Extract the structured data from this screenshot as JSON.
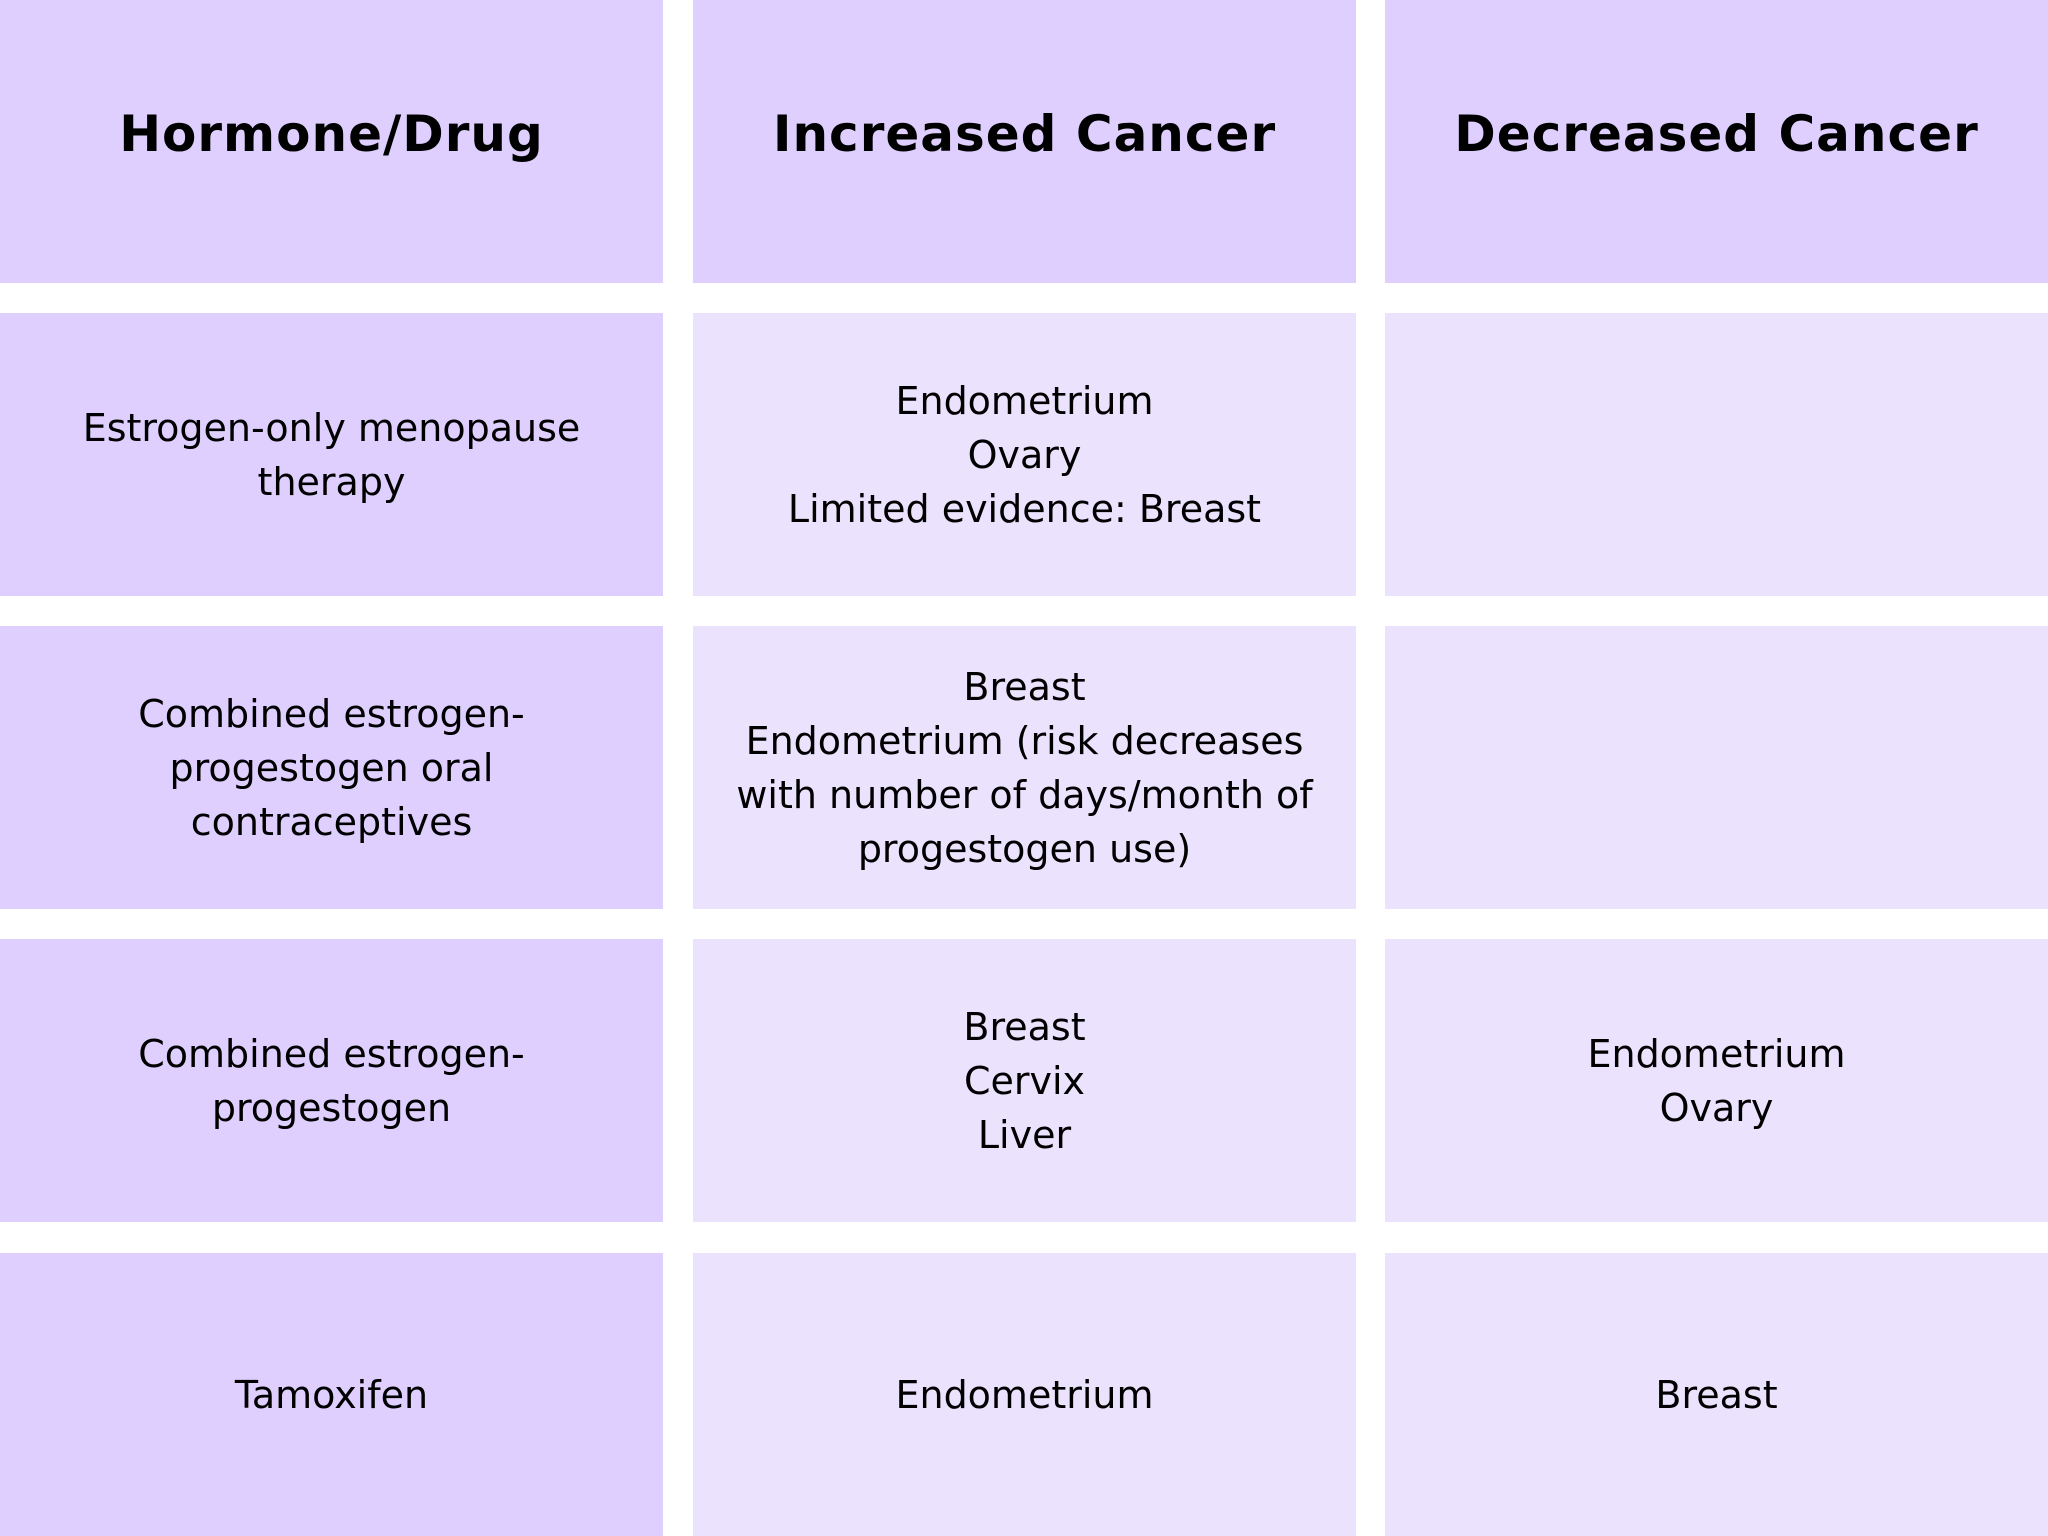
{
  "table": {
    "headers": [
      "Hormone/Drug",
      "Increased Cancer",
      "Decreased Cancer"
    ],
    "rows": [
      {
        "drug": "Estrogen-only menopause\ntherapy",
        "increased": "Endometrium\nOvary\nLimited evidence: Breast",
        "decreased": ""
      },
      {
        "drug": "Combined estrogen-\nprogestogen oral\ncontraceptives",
        "increased": "Breast\nEndometrium (risk decreases\nwith number of days/month of\nprogestogen use)",
        "decreased": ""
      },
      {
        "drug": "Combined estrogen-\nprogestogen",
        "increased": "Breast\nCervix\nLiver",
        "decreased": "Endometrium\nOvary"
      },
      {
        "drug": "Tamoxifen",
        "increased": "Endometrium",
        "decreased": "Breast"
      }
    ]
  },
  "colors": {
    "header_and_first_column": "#dfcffe",
    "body_cells": "#ebe2fe",
    "gaps": "#ffffff",
    "text": "#000000"
  }
}
